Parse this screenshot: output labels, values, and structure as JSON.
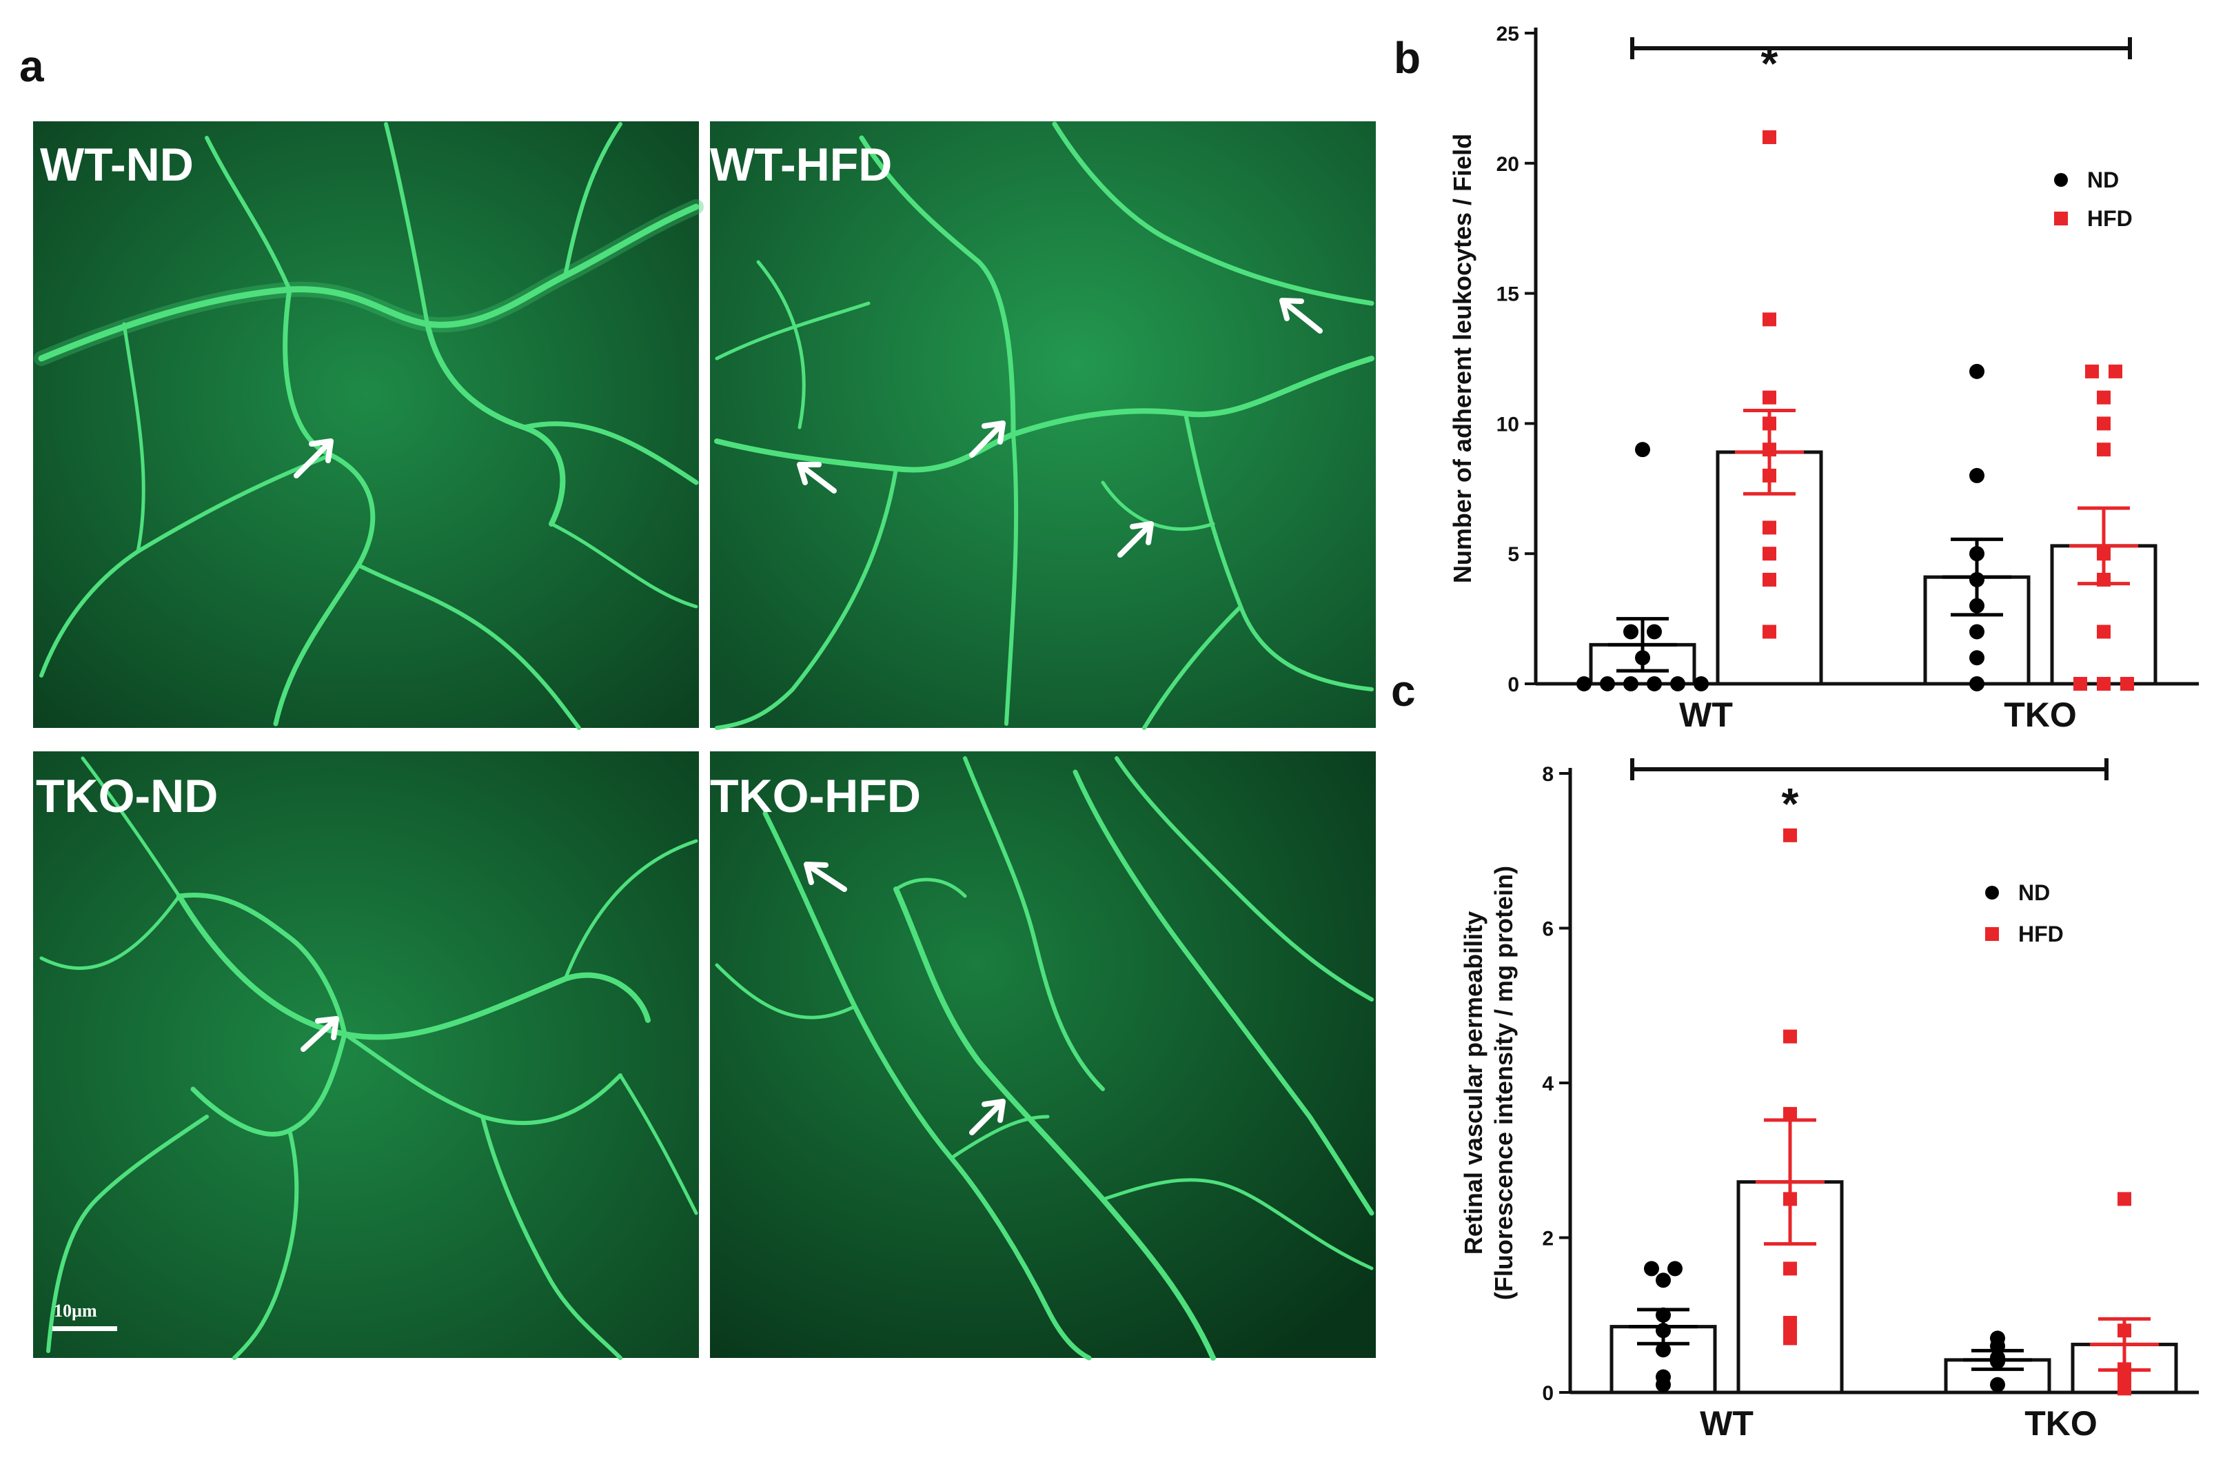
{
  "panel_a": {
    "letter": "a",
    "images": [
      {
        "label": "WT-ND"
      },
      {
        "label": "WT-HFD"
      },
      {
        "label": "TKO-ND"
      },
      {
        "label": "TKO-HFD"
      }
    ],
    "scale_bar_label": "10µm",
    "colors": {
      "background": "#0e4a26",
      "vessel": "#4fe07e",
      "arrow": "#ffffff"
    }
  },
  "chart_data": [
    {
      "type": "bar",
      "panel_letter": "b",
      "categories": [
        "WT",
        "TKO"
      ],
      "ylabel": "Number of adherent leukocytes / Field",
      "ylim": [
        0,
        25
      ],
      "yticks": [
        0,
        5,
        10,
        15,
        20,
        25
      ],
      "legend": {
        "placement": "top-right"
      },
      "significance": {
        "bracket": "WT–TKO",
        "marker": "*",
        "over": "WT HFD"
      },
      "series": [
        {
          "name": "ND",
          "color": "#000000",
          "marker": "circle",
          "means": [
            1.5,
            4.1
          ],
          "sem": [
            1.0,
            1.45
          ],
          "points": [
            [
              0,
              0,
              0,
              0,
              0,
              0,
              1,
              2,
              2,
              9
            ],
            [
              0,
              1,
              2,
              3,
              4,
              5,
              8,
              12
            ]
          ]
        },
        {
          "name": "HFD",
          "color": "#e8262a",
          "marker": "square",
          "means": [
            8.9,
            5.3
          ],
          "sem": [
            1.6,
            1.45
          ],
          "points": [
            [
              2,
              4,
              5,
              6,
              8,
              9,
              10,
              11,
              14,
              21
            ],
            [
              0,
              0,
              0,
              2,
              4,
              5,
              9,
              10,
              11,
              12,
              12
            ]
          ]
        }
      ]
    },
    {
      "type": "bar",
      "panel_letter": "c",
      "categories": [
        "WT",
        "TKO"
      ],
      "ylabel_lines": [
        "Retinal vascular permeability",
        "(Fluorescence intensity / mg protein)"
      ],
      "ylim": [
        0,
        8
      ],
      "yticks": [
        0,
        2,
        4,
        6,
        8
      ],
      "legend": {
        "placement": "top-right"
      },
      "significance": {
        "bracket": "WT–TKO",
        "marker": "*",
        "over": "WT HFD"
      },
      "series": [
        {
          "name": "ND",
          "color": "#000000",
          "marker": "circle",
          "means": [
            0.85,
            0.42
          ],
          "sem": [
            0.22,
            0.12
          ],
          "points": [
            [
              0.1,
              0.2,
              0.55,
              0.8,
              1.0,
              1.45,
              1.6,
              1.6
            ],
            [
              0.1,
              0.4,
              0.45,
              0.6,
              0.7
            ]
          ]
        },
        {
          "name": "HFD",
          "color": "#e8262a",
          "marker": "square",
          "means": [
            2.72,
            0.62
          ],
          "sem": [
            0.8,
            0.33
          ],
          "points": [
            [
              0.7,
              0.75,
              0.9,
              1.6,
              2.5,
              3.6,
              4.6,
              7.2
            ],
            [
              0.05,
              0.1,
              0.2,
              0.3,
              0.8,
              2.5
            ]
          ]
        }
      ]
    }
  ]
}
